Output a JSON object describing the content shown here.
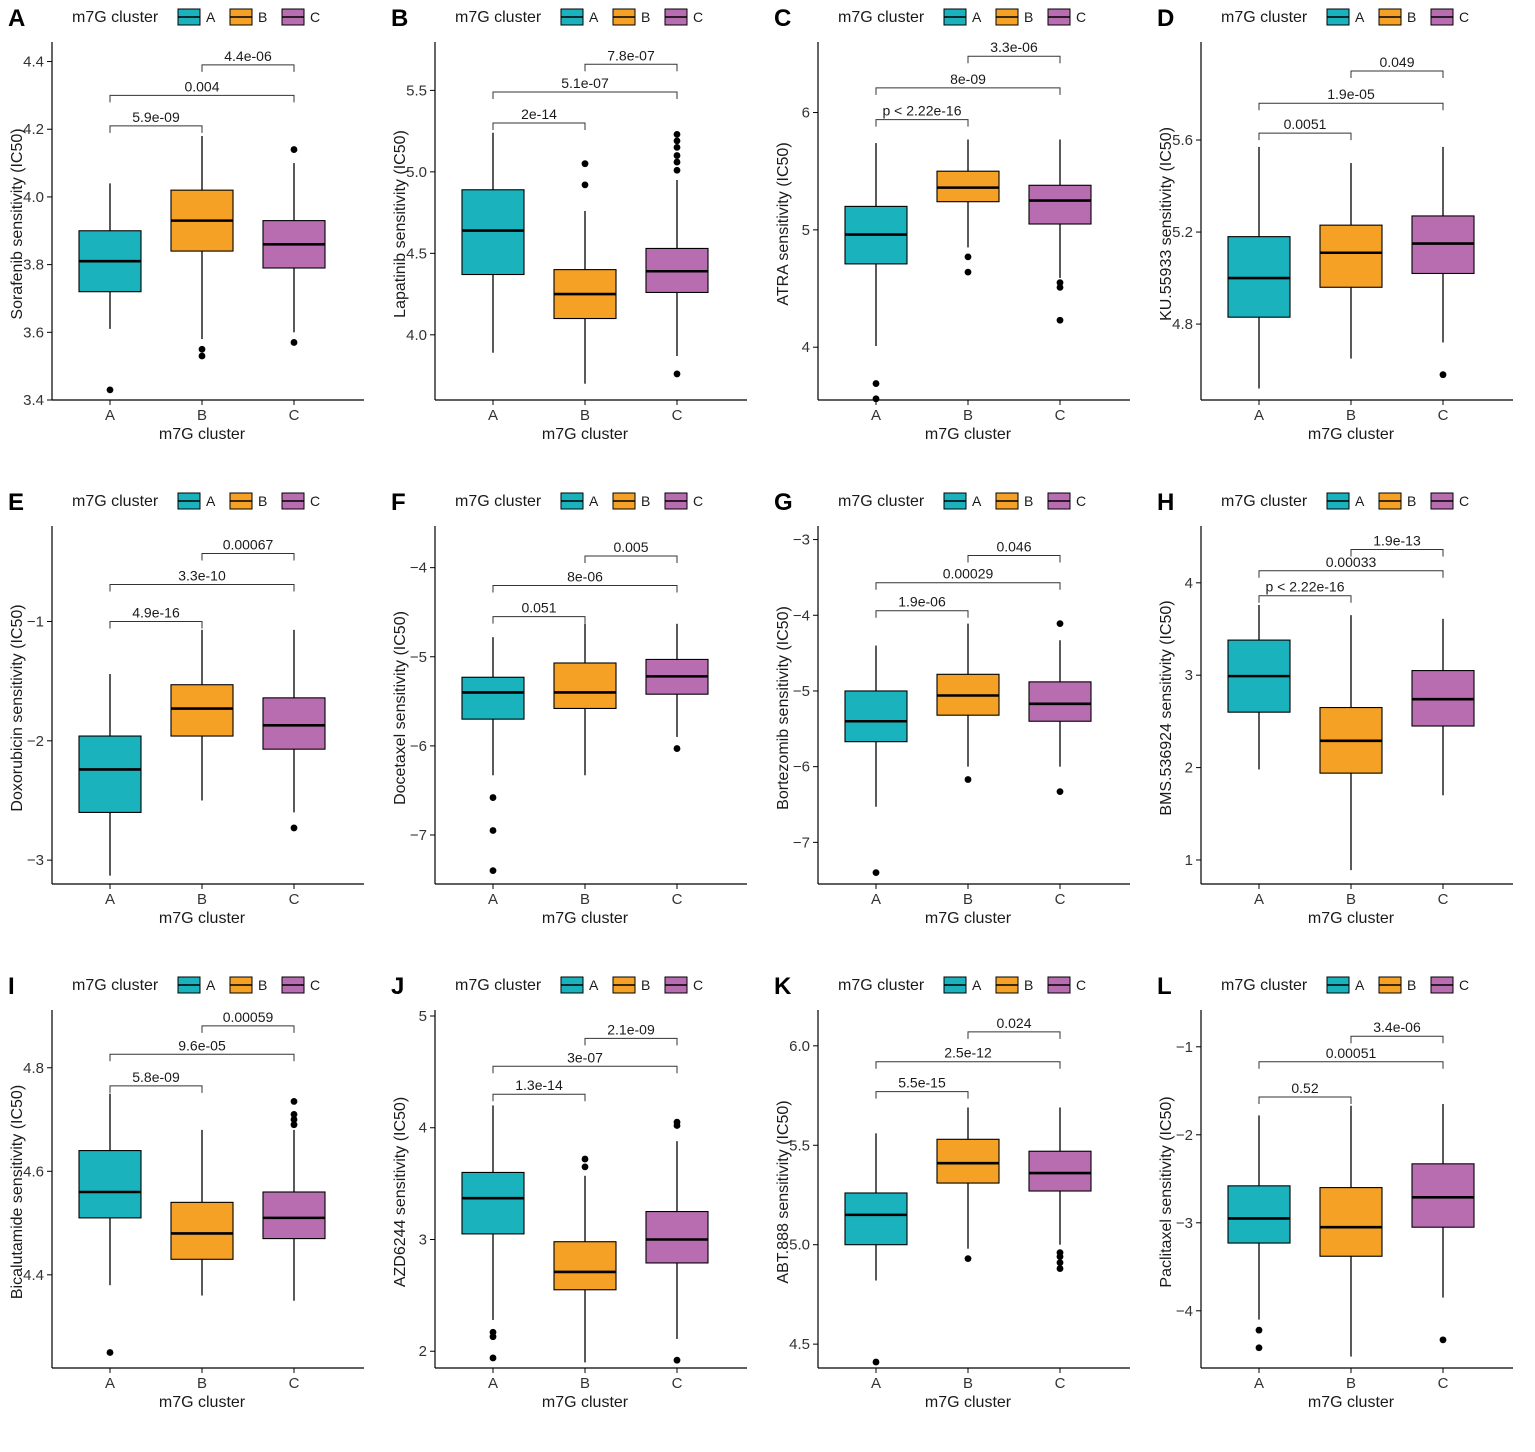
{
  "legend": {
    "title": "m7G cluster",
    "groups": [
      "A",
      "B",
      "C"
    ]
  },
  "colors": {
    "A": "#1ab3bd",
    "B": "#f5a126",
    "C": "#b86db1",
    "stroke": "#000000"
  },
  "chart_data": [
    {
      "panel": "A",
      "type": "boxplot",
      "xlabel": "m7G cluster",
      "ylabel": "Sorafenib sensitivity (IC50)",
      "categories": [
        "A",
        "B",
        "C"
      ],
      "ylim": [
        3.4,
        4.44
      ],
      "yticks": [
        3.4,
        3.6,
        3.8,
        4.0,
        4.2,
        4.4
      ],
      "ytick_labels": [
        "3.4",
        "3.6",
        "3.8",
        "4.0",
        "4.2",
        "4.4"
      ],
      "boxes": [
        {
          "group": "A",
          "q1": 3.72,
          "median": 3.81,
          "q3": 3.9,
          "wlow": 3.61,
          "whigh": 4.04,
          "outliers": [
            3.43
          ]
        },
        {
          "group": "B",
          "q1": 3.84,
          "median": 3.93,
          "q3": 4.02,
          "wlow": 3.58,
          "whigh": 4.18,
          "outliers": [
            3.55,
            3.53
          ]
        },
        {
          "group": "C",
          "q1": 3.79,
          "median": 3.86,
          "q3": 3.93,
          "wlow": 3.6,
          "whigh": 4.1,
          "outliers": [
            4.14,
            3.57
          ]
        }
      ],
      "comparisons": [
        {
          "pair": [
            "A",
            "B"
          ],
          "label": "5.9e-09",
          "y": 4.21
        },
        {
          "pair": [
            "A",
            "C"
          ],
          "label": "0.004",
          "y": 4.3
        },
        {
          "pair": [
            "B",
            "C"
          ],
          "label": "4.4e-06",
          "y": 4.39
        }
      ]
    },
    {
      "panel": "B",
      "type": "boxplot",
      "xlabel": "m7G cluster",
      "ylabel": "Lapatinib sensitivity (IC50)",
      "categories": [
        "A",
        "B",
        "C"
      ],
      "ylim": [
        3.6,
        5.76
      ],
      "yticks": [
        4.0,
        4.5,
        5.0,
        5.5
      ],
      "ytick_labels": [
        "4.0",
        "4.5",
        "5.0",
        "5.5"
      ],
      "boxes": [
        {
          "group": "A",
          "q1": 4.37,
          "median": 4.64,
          "q3": 4.89,
          "wlow": 3.89,
          "whigh": 5.24,
          "outliers": []
        },
        {
          "group": "B",
          "q1": 4.1,
          "median": 4.25,
          "q3": 4.4,
          "wlow": 3.7,
          "whigh": 4.76,
          "outliers": [
            5.05,
            4.92
          ]
        },
        {
          "group": "C",
          "q1": 4.26,
          "median": 4.39,
          "q3": 4.53,
          "wlow": 3.87,
          "whigh": 4.95,
          "outliers": [
            5.23,
            5.19,
            5.15,
            5.1,
            5.06,
            5.01,
            3.76
          ]
        }
      ],
      "comparisons": [
        {
          "pair": [
            "A",
            "B"
          ],
          "label": "2e-14",
          "y": 5.3
        },
        {
          "pair": [
            "A",
            "C"
          ],
          "label": "5.1e-07",
          "y": 5.49
        },
        {
          "pair": [
            "B",
            "C"
          ],
          "label": "7.8e-07",
          "y": 5.66
        }
      ]
    },
    {
      "panel": "C",
      "type": "boxplot",
      "xlabel": "m7G cluster",
      "ylabel": "ATRA sensitivity (IC50)",
      "categories": [
        "A",
        "B",
        "C"
      ],
      "ylim": [
        3.55,
        6.55
      ],
      "yticks": [
        4,
        5,
        6
      ],
      "ytick_labels": [
        "4",
        "5",
        "6"
      ],
      "boxes": [
        {
          "group": "A",
          "q1": 4.71,
          "median": 4.96,
          "q3": 5.2,
          "wlow": 4.01,
          "whigh": 5.74,
          "outliers": [
            3.69,
            3.56
          ]
        },
        {
          "group": "B",
          "q1": 5.24,
          "median": 5.36,
          "q3": 5.5,
          "wlow": 4.85,
          "whigh": 5.77,
          "outliers": [
            4.77,
            4.64
          ]
        },
        {
          "group": "C",
          "q1": 5.05,
          "median": 5.25,
          "q3": 5.38,
          "wlow": 4.59,
          "whigh": 5.77,
          "outliers": [
            4.55,
            4.51,
            4.23
          ]
        }
      ],
      "comparisons": [
        {
          "pair": [
            "A",
            "B"
          ],
          "label": "p < 2.22e-16",
          "y": 5.94
        },
        {
          "pair": [
            "A",
            "C"
          ],
          "label": "8e-09",
          "y": 6.21
        },
        {
          "pair": [
            "B",
            "C"
          ],
          "label": "3.3e-06",
          "y": 6.48
        }
      ]
    },
    {
      "panel": "D",
      "type": "boxplot",
      "xlabel": "m7G cluster",
      "ylabel": "KU.55933 sensitivity (IC50)",
      "categories": [
        "A",
        "B",
        "C"
      ],
      "ylim": [
        4.47,
        6.0
      ],
      "yticks": [
        4.8,
        5.2,
        5.6
      ],
      "ytick_labels": [
        "4.8",
        "5.2",
        "5.6"
      ],
      "boxes": [
        {
          "group": "A",
          "q1": 4.83,
          "median": 5.0,
          "q3": 5.18,
          "wlow": 4.52,
          "whigh": 5.57,
          "outliers": []
        },
        {
          "group": "B",
          "q1": 4.96,
          "median": 5.11,
          "q3": 5.23,
          "wlow": 4.65,
          "whigh": 5.5,
          "outliers": []
        },
        {
          "group": "C",
          "q1": 5.02,
          "median": 5.15,
          "q3": 5.27,
          "wlow": 4.72,
          "whigh": 5.57,
          "outliers": [
            4.58
          ]
        }
      ],
      "comparisons": [
        {
          "pair": [
            "A",
            "B"
          ],
          "label": "0.0051",
          "y": 5.63
        },
        {
          "pair": [
            "A",
            "C"
          ],
          "label": "1.9e-05",
          "y": 5.76
        },
        {
          "pair": [
            "B",
            "C"
          ],
          "label": "0.049",
          "y": 5.9
        }
      ]
    },
    {
      "panel": "E",
      "type": "boxplot",
      "xlabel": "m7G cluster",
      "ylabel": "Doxorubicin sensitivity (IC50)",
      "categories": [
        "A",
        "B",
        "C"
      ],
      "ylim": [
        -3.2,
        -0.25
      ],
      "yticks": [
        -3,
        -2,
        -1
      ],
      "ytick_labels": [
        "−3",
        "−2",
        "−1"
      ],
      "boxes": [
        {
          "group": "A",
          "q1": -2.6,
          "median": -2.24,
          "q3": -1.96,
          "wlow": -3.13,
          "whigh": -1.44,
          "outliers": []
        },
        {
          "group": "B",
          "q1": -1.96,
          "median": -1.73,
          "q3": -1.53,
          "wlow": -2.5,
          "whigh": -1.07,
          "outliers": []
        },
        {
          "group": "C",
          "q1": -2.07,
          "median": -1.87,
          "q3": -1.64,
          "wlow": -2.6,
          "whigh": -1.07,
          "outliers": [
            -2.73
          ]
        }
      ],
      "comparisons": [
        {
          "pair": [
            "A",
            "B"
          ],
          "label": "4.9e-16",
          "y": -1.0
        },
        {
          "pair": [
            "A",
            "C"
          ],
          "label": "3.3e-10",
          "y": -0.69
        },
        {
          "pair": [
            "B",
            "C"
          ],
          "label": "0.00067",
          "y": -0.43
        }
      ]
    },
    {
      "panel": "F",
      "type": "boxplot",
      "xlabel": "m7G cluster",
      "ylabel": "Docetaxel sensitivity (IC50)",
      "categories": [
        "A",
        "B",
        "C"
      ],
      "ylim": [
        -7.55,
        -3.6
      ],
      "yticks": [
        -7,
        -6,
        -5,
        -4
      ],
      "ytick_labels": [
        "−7",
        "−6",
        "−5",
        "−4"
      ],
      "boxes": [
        {
          "group": "A",
          "q1": -5.7,
          "median": -5.4,
          "q3": -5.23,
          "wlow": -6.33,
          "whigh": -4.78,
          "outliers": [
            -6.58,
            -6.95,
            -7.4
          ]
        },
        {
          "group": "B",
          "q1": -5.58,
          "median": -5.4,
          "q3": -5.07,
          "wlow": -6.33,
          "whigh": -4.63,
          "outliers": []
        },
        {
          "group": "C",
          "q1": -5.42,
          "median": -5.22,
          "q3": -5.03,
          "wlow": -5.9,
          "whigh": -4.63,
          "outliers": [
            -6.03
          ]
        }
      ],
      "comparisons": [
        {
          "pair": [
            "A",
            "B"
          ],
          "label": "0.051",
          "y": -4.55
        },
        {
          "pair": [
            "A",
            "C"
          ],
          "label": "8e-06",
          "y": -4.2
        },
        {
          "pair": [
            "B",
            "C"
          ],
          "label": "0.005",
          "y": -3.87
        }
      ]
    },
    {
      "panel": "G",
      "type": "boxplot",
      "xlabel": "m7G cluster",
      "ylabel": "Bortezomib sensitivity (IC50)",
      "categories": [
        "A",
        "B",
        "C"
      ],
      "ylim": [
        -7.55,
        -2.9
      ],
      "yticks": [
        -7,
        -6,
        -5,
        -4,
        -3
      ],
      "ytick_labels": [
        "−7",
        "−6",
        "−5",
        "−4",
        "−3"
      ],
      "boxes": [
        {
          "group": "A",
          "q1": -5.67,
          "median": -5.4,
          "q3": -5.0,
          "wlow": -6.53,
          "whigh": -4.4,
          "outliers": [
            -7.4
          ]
        },
        {
          "group": "B",
          "q1": -5.32,
          "median": -5.06,
          "q3": -4.78,
          "wlow": -6.0,
          "whigh": -4.11,
          "outliers": [
            -6.17
          ]
        },
        {
          "group": "C",
          "q1": -5.4,
          "median": -5.17,
          "q3": -4.88,
          "wlow": -6.0,
          "whigh": -4.33,
          "outliers": [
            -4.11,
            -6.33
          ]
        }
      ],
      "comparisons": [
        {
          "pair": [
            "A",
            "B"
          ],
          "label": "1.9e-06",
          "y": -3.94
        },
        {
          "pair": [
            "A",
            "C"
          ],
          "label": "0.00029",
          "y": -3.57
        },
        {
          "pair": [
            "B",
            "C"
          ],
          "label": "0.046",
          "y": -3.21
        }
      ]
    },
    {
      "panel": "H",
      "type": "boxplot",
      "xlabel": "m7G cluster",
      "ylabel": "BMS.536924 sensitivity (IC50)",
      "categories": [
        "A",
        "B",
        "C"
      ],
      "ylim": [
        0.74,
        4.55
      ],
      "yticks": [
        1,
        2,
        3,
        4
      ],
      "ytick_labels": [
        "1",
        "2",
        "3",
        "4"
      ],
      "boxes": [
        {
          "group": "A",
          "q1": 2.6,
          "median": 2.99,
          "q3": 3.38,
          "wlow": 1.98,
          "whigh": 3.76,
          "outliers": []
        },
        {
          "group": "B",
          "q1": 1.94,
          "median": 2.29,
          "q3": 2.65,
          "wlow": 0.89,
          "whigh": 3.65,
          "outliers": []
        },
        {
          "group": "C",
          "q1": 2.45,
          "median": 2.74,
          "q3": 3.05,
          "wlow": 1.7,
          "whigh": 3.61,
          "outliers": []
        }
      ],
      "comparisons": [
        {
          "pair": [
            "A",
            "B"
          ],
          "label": "p < 2.22e-16",
          "y": 3.86
        },
        {
          "pair": [
            "A",
            "C"
          ],
          "label": "0.00033",
          "y": 4.13
        },
        {
          "pair": [
            "B",
            "C"
          ],
          "label": "1.9e-13",
          "y": 4.36
        }
      ]
    },
    {
      "panel": "I",
      "type": "boxplot",
      "xlabel": "m7G cluster",
      "ylabel": "Bicalutamide sensitivity (IC50)",
      "categories": [
        "A",
        "B",
        "C"
      ],
      "ylim": [
        4.22,
        4.9
      ],
      "yticks": [
        4.4,
        4.6,
        4.8
      ],
      "ytick_labels": [
        "4.4",
        "4.6",
        "4.8"
      ],
      "boxes": [
        {
          "group": "A",
          "q1": 4.51,
          "median": 4.56,
          "q3": 4.64,
          "wlow": 4.38,
          "whigh": 4.75,
          "outliers": [
            4.25
          ]
        },
        {
          "group": "B",
          "q1": 4.43,
          "median": 4.48,
          "q3": 4.54,
          "wlow": 4.36,
          "whigh": 4.68,
          "outliers": []
        },
        {
          "group": "C",
          "q1": 4.47,
          "median": 4.51,
          "q3": 4.56,
          "wlow": 4.35,
          "whigh": 4.68,
          "outliers": [
            4.735,
            4.71,
            4.7,
            4.69
          ]
        }
      ],
      "comparisons": [
        {
          "pair": [
            "A",
            "B"
          ],
          "label": "5.8e-09",
          "y": 4.765
        },
        {
          "pair": [
            "A",
            "C"
          ],
          "label": "9.6e-05",
          "y": 4.826
        },
        {
          "pair": [
            "B",
            "C"
          ],
          "label": "0.00059",
          "y": 4.881
        }
      ]
    },
    {
      "panel": "J",
      "type": "boxplot",
      "xlabel": "m7G cluster",
      "ylabel": "AZD6244 sensitivity (IC50)",
      "categories": [
        "A",
        "B",
        "C"
      ],
      "ylim": [
        1.85,
        5.0
      ],
      "yticks": [
        2,
        3,
        4,
        5
      ],
      "ytick_labels": [
        "2",
        "3",
        "4",
        "5"
      ],
      "boxes": [
        {
          "group": "A",
          "q1": 3.05,
          "median": 3.37,
          "q3": 3.6,
          "wlow": 2.28,
          "whigh": 4.2,
          "outliers": [
            2.17,
            2.13,
            1.94
          ]
        },
        {
          "group": "B",
          "q1": 2.55,
          "median": 2.71,
          "q3": 2.98,
          "wlow": 1.9,
          "whigh": 3.57,
          "outliers": [
            3.72,
            3.65
          ]
        },
        {
          "group": "C",
          "q1": 2.79,
          "median": 3.0,
          "q3": 3.25,
          "wlow": 2.11,
          "whigh": 3.88,
          "outliers": [
            4.05,
            4.02,
            1.92
          ]
        }
      ],
      "comparisons": [
        {
          "pair": [
            "A",
            "B"
          ],
          "label": "1.3e-14",
          "y": 4.3
        },
        {
          "pair": [
            "A",
            "C"
          ],
          "label": "3e-07",
          "y": 4.55
        },
        {
          "pair": [
            "B",
            "C"
          ],
          "label": "2.1e-09",
          "y": 4.8
        }
      ]
    },
    {
      "panel": "K",
      "type": "boxplot",
      "xlabel": "m7G cluster",
      "ylabel": "ABT.888 sensitivity (IC50)",
      "categories": [
        "A",
        "B",
        "C"
      ],
      "ylim": [
        4.38,
        6.15
      ],
      "yticks": [
        4.5,
        5.0,
        5.5,
        6.0
      ],
      "ytick_labels": [
        "4.5",
        "5.0",
        "5.5",
        "6.0"
      ],
      "boxes": [
        {
          "group": "A",
          "q1": 5.0,
          "median": 5.15,
          "q3": 5.26,
          "wlow": 4.82,
          "whigh": 5.56,
          "outliers": [
            4.41
          ]
        },
        {
          "group": "B",
          "q1": 5.31,
          "median": 5.41,
          "q3": 5.53,
          "wlow": 4.98,
          "whigh": 5.69,
          "outliers": [
            4.93
          ]
        },
        {
          "group": "C",
          "q1": 5.27,
          "median": 5.36,
          "q3": 5.47,
          "wlow": 5.0,
          "whigh": 5.69,
          "outliers": [
            4.96,
            4.94,
            4.91,
            4.88
          ]
        }
      ],
      "comparisons": [
        {
          "pair": [
            "A",
            "B"
          ],
          "label": "5.5e-15",
          "y": 5.77
        },
        {
          "pair": [
            "A",
            "C"
          ],
          "label": "2.5e-12",
          "y": 5.92
        },
        {
          "pair": [
            "B",
            "C"
          ],
          "label": "0.024",
          "y": 6.07
        }
      ]
    },
    {
      "panel": "L",
      "type": "boxplot",
      "xlabel": "m7G cluster",
      "ylabel": "Paclitaxel sensitivity (IC50)",
      "categories": [
        "A",
        "B",
        "C"
      ],
      "ylim": [
        -4.65,
        -0.65
      ],
      "yticks": [
        -4,
        -3,
        -2,
        -1
      ],
      "ytick_labels": [
        "−4",
        "−3",
        "−2",
        "−1"
      ],
      "boxes": [
        {
          "group": "A",
          "q1": -3.23,
          "median": -2.95,
          "q3": -2.58,
          "wlow": -4.1,
          "whigh": -1.78,
          "outliers": [
            -4.22,
            -4.42
          ]
        },
        {
          "group": "B",
          "q1": -3.38,
          "median": -3.05,
          "q3": -2.6,
          "wlow": -4.52,
          "whigh": -1.67,
          "outliers": []
        },
        {
          "group": "C",
          "q1": -3.05,
          "median": -2.71,
          "q3": -2.33,
          "wlow": -3.85,
          "whigh": -1.65,
          "outliers": [
            -4.33
          ]
        }
      ],
      "comparisons": [
        {
          "pair": [
            "A",
            "B"
          ],
          "label": "0.52",
          "y": -1.57
        },
        {
          "pair": [
            "A",
            "C"
          ],
          "label": "0.00051",
          "y": -1.17
        },
        {
          "pair": [
            "B",
            "C"
          ],
          "label": "3.4e-06",
          "y": -0.88
        }
      ]
    }
  ]
}
